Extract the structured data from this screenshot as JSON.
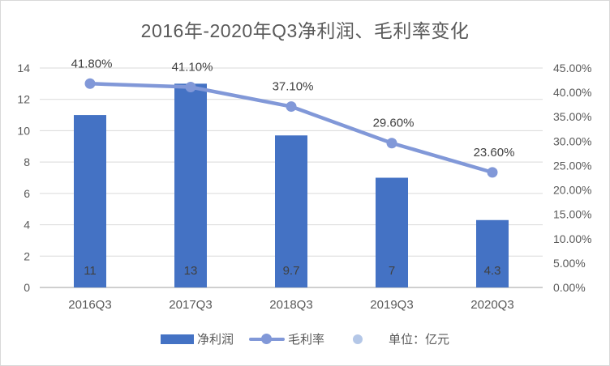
{
  "chart_data": {
    "type": "bar",
    "subtype": "bar-line-combo",
    "title": "2016年-2020年Q3净利润、毛利率变化",
    "categories": [
      "2016Q3",
      "2017Q3",
      "2018Q3",
      "2019Q3",
      "2020Q3"
    ],
    "series": [
      {
        "name": "净利润",
        "type": "bar",
        "axis": "left",
        "values": [
          11,
          13,
          9.7,
          7,
          4.3
        ],
        "labels": [
          "11",
          "13",
          "9.7",
          "7",
          "4.3"
        ],
        "color": "#4472C4"
      },
      {
        "name": "毛利率",
        "type": "line",
        "axis": "right",
        "values": [
          41.8,
          41.1,
          37.1,
          29.6,
          23.6
        ],
        "labels": [
          "41.80%",
          "41.10%",
          "37.10%",
          "29.60%",
          "23.60%"
        ],
        "color": "#8198D8"
      }
    ],
    "left_axis": {
      "min": 0,
      "max": 14,
      "step": 2,
      "ticks": [
        "0",
        "2",
        "4",
        "6",
        "8",
        "10",
        "12",
        "14"
      ]
    },
    "right_axis": {
      "min": 0,
      "max": 45,
      "step": 5,
      "ticks": [
        "0.00%",
        "5.00%",
        "10.00%",
        "15.00%",
        "20.00%",
        "25.00%",
        "30.00%",
        "35.00%",
        "40.00%",
        "45.00%"
      ]
    },
    "grid": true,
    "legend_position": "bottom",
    "legend": [
      {
        "label": "净利润",
        "swatch": "bar",
        "color": "#4472C4"
      },
      {
        "label": "毛利率",
        "swatch": "line",
        "color": "#8198D8"
      },
      {
        "label": "单位：亿元",
        "swatch": "dot",
        "color": "#B4C7E7"
      }
    ],
    "colors": {
      "bar": "#4472C4",
      "line": "#8198D8",
      "unit_dot": "#B4C7E7",
      "title_text": "#595959",
      "tick_text": "#595959",
      "value_label_text": "#404040",
      "gridline": "#D9D9D9",
      "baseline": "#BFBFBF"
    }
  }
}
